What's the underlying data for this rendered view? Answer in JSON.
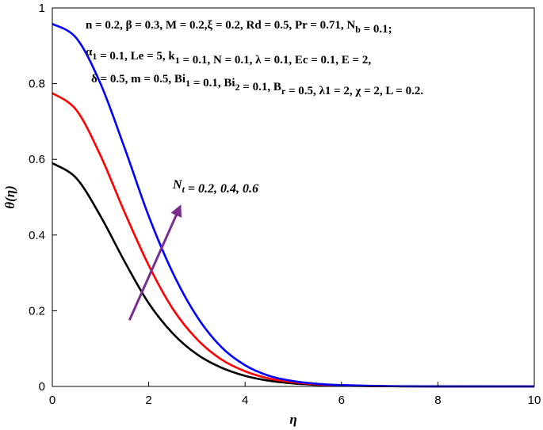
{
  "chart_data": {
    "type": "line",
    "title": "",
    "xlabel": "η",
    "ylabel": "θ(η)",
    "xlim": [
      0,
      10
    ],
    "ylim": [
      0,
      1
    ],
    "x_ticks": [
      0,
      2,
      4,
      6,
      8,
      10
    ],
    "y_ticks": [
      0,
      0.2,
      0.4,
      0.6,
      0.8,
      1
    ],
    "x_tick_labels": [
      "0",
      "2",
      "4",
      "6",
      "8",
      "10"
    ],
    "y_tick_labels": [
      "0",
      "0.2",
      "0.4",
      "0.6",
      "0.8",
      "1"
    ],
    "grid": false,
    "x": [
      0,
      0.5,
      1,
      1.5,
      2,
      2.5,
      3,
      3.5,
      4,
      4.5,
      5,
      5.5,
      6,
      7,
      8,
      10
    ],
    "series": [
      {
        "color": "#000000",
        "values": [
          0.59,
          0.55,
          0.45,
          0.33,
          0.22,
          0.14,
          0.085,
          0.05,
          0.028,
          0.015,
          0.008,
          0.004,
          0.002,
          0.0005,
          0.0001,
          0
        ]
      },
      {
        "color": "#ff0000",
        "values": [
          0.775,
          0.73,
          0.61,
          0.46,
          0.32,
          0.205,
          0.125,
          0.072,
          0.04,
          0.021,
          0.011,
          0.0055,
          0.0025,
          0.0006,
          0.0001,
          0
        ]
      },
      {
        "color": "#0000ff",
        "values": [
          0.958,
          0.92,
          0.8,
          0.63,
          0.45,
          0.3,
          0.185,
          0.105,
          0.056,
          0.028,
          0.014,
          0.007,
          0.0035,
          0.0008,
          0.0002,
          0
        ]
      }
    ],
    "parameter_lines": [
      "n = 0.2, β = 0.3, M = 0.2,ξ = 0.2, Rd = 0.5, Pr = 0.71, Nb = 0.1;",
      "α1 = 0.1, Le = 5, k1 = 0.1, N = 0.1, λ = 0.1, Ec = 0.1, E = 2,",
      "δ = 0.5, m = 0.5, Bi1 = 0.1, Bi2 = 0.1, Br = 0.5, λ1 = 2, χ = 2, L = 0.2."
    ],
    "annotation": {
      "text": "Nt = 0.2, 0.4, 0.6",
      "arrow_color": "#7b2d8e",
      "arrow_from": [
        1.6,
        0.175
      ],
      "arrow_to": [
        2.65,
        0.475
      ]
    }
  }
}
